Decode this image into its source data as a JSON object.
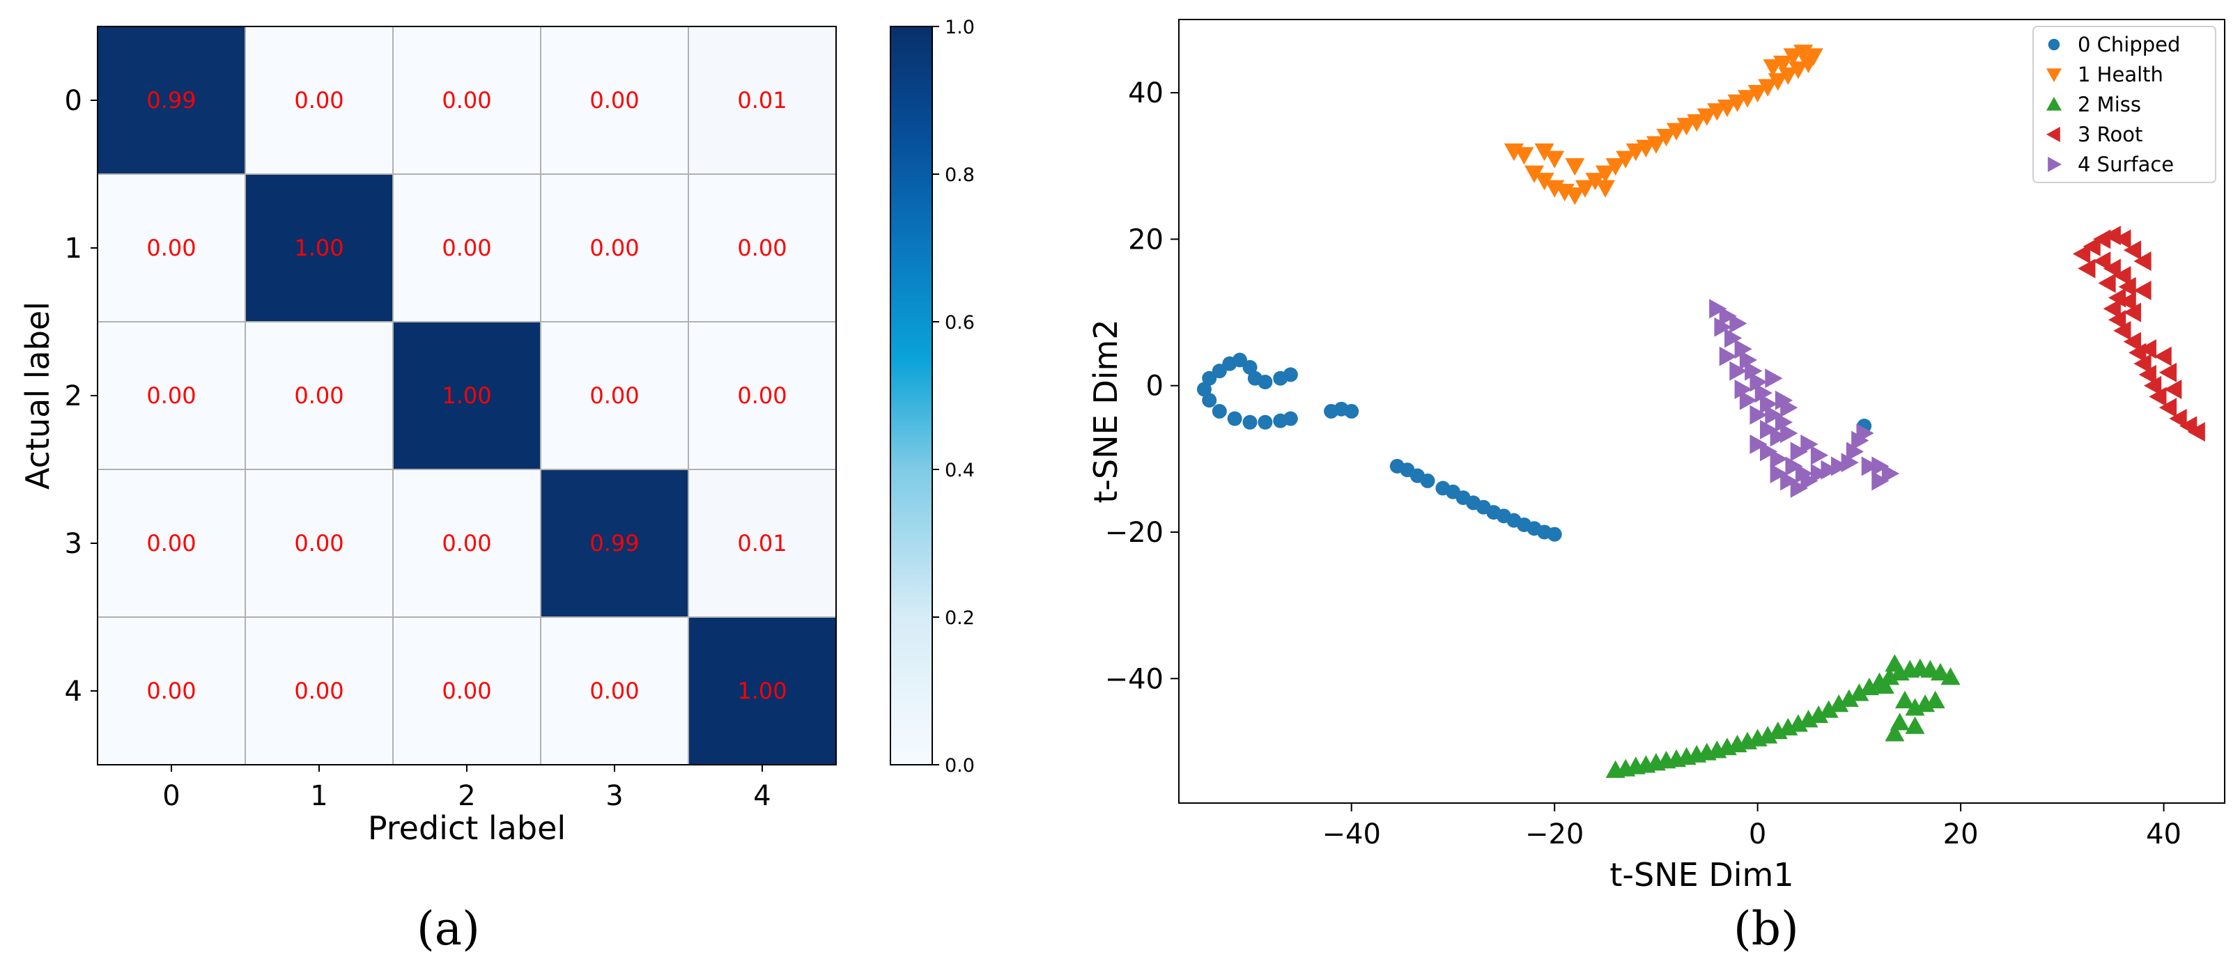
{
  "captions": [
    "(a)",
    "(b)"
  ],
  "colors": {
    "dark": "#08306b",
    "light": "#f7fbff",
    "text": "#ff0000",
    "series": [
      "#1f77b4",
      "#ff7f0e",
      "#2ca02c",
      "#d62728",
      "#9467bd"
    ]
  },
  "chart_data": [
    {
      "type": "heatmap",
      "title": "",
      "xlabel": "Predict label",
      "ylabel": "Actual label",
      "x_categories": [
        "0",
        "1",
        "2",
        "3",
        "4"
      ],
      "y_categories": [
        "0",
        "1",
        "2",
        "3",
        "4"
      ],
      "values": [
        [
          0.99,
          0.0,
          0.0,
          0.0,
          0.01
        ],
        [
          0.0,
          1.0,
          0.0,
          0.0,
          0.0
        ],
        [
          0.0,
          0.0,
          1.0,
          0.0,
          0.0
        ],
        [
          0.0,
          0.0,
          0.0,
          0.99,
          0.01
        ],
        [
          0.0,
          0.0,
          0.0,
          0.0,
          1.0
        ]
      ],
      "value_labels": [
        [
          "0.99",
          "0.00",
          "0.00",
          "0.00",
          "0.01"
        ],
        [
          "0.00",
          "1.00",
          "0.00",
          "0.00",
          "0.00"
        ],
        [
          "0.00",
          "0.00",
          "1.00",
          "0.00",
          "0.00"
        ],
        [
          "0.00",
          "0.00",
          "0.00",
          "0.99",
          "0.01"
        ],
        [
          "0.00",
          "0.00",
          "0.00",
          "0.00",
          "1.00"
        ]
      ],
      "colorbar": {
        "range": [
          0,
          1
        ],
        "ticks": [
          "0.0",
          "0.2",
          "0.4",
          "0.6",
          "0.8",
          "1.0"
        ]
      },
      "grid": true
    },
    {
      "type": "scatter",
      "title": "",
      "xlabel": "t-SNE Dim1",
      "ylabel": "t-SNE Dim2",
      "xlim": [
        -57,
        46
      ],
      "ylim": [
        -57,
        50
      ],
      "x_ticks": [
        -40,
        -20,
        0,
        20,
        40
      ],
      "y_ticks": [
        -40,
        -20,
        0,
        20,
        40
      ],
      "legend_position": "top-right",
      "series": [
        {
          "name": "0 Chipped",
          "marker": "circle",
          "color": "#1f77b4",
          "points": [
            [
              -52,
              3
            ],
            [
              -53,
              2
            ],
            [
              -54,
              1
            ],
            [
              -54.5,
              -0.5
            ],
            [
              -54,
              -2
            ],
            [
              -53,
              -3.5
            ],
            [
              -51.5,
              -4.5
            ],
            [
              -50,
              -5
            ],
            [
              -48.5,
              -5
            ],
            [
              -47,
              -4.8
            ],
            [
              -46,
              -4.5
            ],
            [
              -51,
              3.5
            ],
            [
              -50,
              2.5
            ],
            [
              -49.5,
              1
            ],
            [
              -48.5,
              0.5
            ],
            [
              -47,
              1
            ],
            [
              -46,
              1.5
            ],
            [
              -42,
              -3.5
            ],
            [
              -41,
              -3.2
            ],
            [
              -40,
              -3.5
            ],
            [
              -35.5,
              -11
            ],
            [
              -34.5,
              -11.5
            ],
            [
              -33.5,
              -12.3
            ],
            [
              -32.5,
              -13
            ],
            [
              -31,
              -14
            ],
            [
              -30,
              -14.5
            ],
            [
              -29,
              -15.3
            ],
            [
              -28,
              -16
            ],
            [
              -27,
              -16.6
            ],
            [
              -26,
              -17.3
            ],
            [
              -25,
              -17.8
            ],
            [
              -24,
              -18.4
            ],
            [
              -23,
              -19
            ],
            [
              -22,
              -19.5
            ],
            [
              -21,
              -20
            ],
            [
              -20,
              -20.3
            ],
            [
              10.5,
              -5.5
            ]
          ]
        },
        {
          "name": "1 Health",
          "marker": "triangle-down",
          "color": "#ff7f0e",
          "points": [
            [
              -24,
              32
            ],
            [
              -23,
              31.5
            ],
            [
              -21,
              32
            ],
            [
              -20,
              31
            ],
            [
              -22,
              29
            ],
            [
              -21,
              28
            ],
            [
              -20,
              27
            ],
            [
              -19,
              26.5
            ],
            [
              -18,
              26
            ],
            [
              -17,
              27
            ],
            [
              -16,
              28
            ],
            [
              -15,
              29
            ],
            [
              -14,
              30
            ],
            [
              -13,
              31
            ],
            [
              -12,
              32
            ],
            [
              -11,
              32.5
            ],
            [
              -10,
              33
            ],
            [
              -9,
              34
            ],
            [
              -8,
              34.8
            ],
            [
              -7,
              35.5
            ],
            [
              -6,
              36
            ],
            [
              -5,
              36.8
            ],
            [
              -4,
              37.5
            ],
            [
              -3,
              38
            ],
            [
              -2,
              38.7
            ],
            [
              -1,
              39.3
            ],
            [
              0,
              40
            ],
            [
              1,
              40.8
            ],
            [
              2,
              41.6
            ],
            [
              3,
              42.4
            ],
            [
              4,
              43.2
            ],
            [
              5,
              44
            ],
            [
              5.5,
              45
            ],
            [
              4.5,
              45.5
            ],
            [
              3.5,
              45
            ],
            [
              2.5,
              44
            ],
            [
              1.5,
              43.5
            ],
            [
              -15,
              27
            ],
            [
              -18,
              30
            ]
          ]
        },
        {
          "name": "2 Miss",
          "marker": "triangle-up",
          "color": "#2ca02c",
          "points": [
            [
              -14,
              -52.5
            ],
            [
              -13,
              -52.3
            ],
            [
              -12,
              -52
            ],
            [
              -11,
              -51.8
            ],
            [
              -10,
              -51.5
            ],
            [
              -9,
              -51.2
            ],
            [
              -8,
              -51
            ],
            [
              -7,
              -50.7
            ],
            [
              -6,
              -50.4
            ],
            [
              -5,
              -50.1
            ],
            [
              -4,
              -49.8
            ],
            [
              -3,
              -49.4
            ],
            [
              -2,
              -49
            ],
            [
              -1,
              -48.6
            ],
            [
              0,
              -48.2
            ],
            [
              1,
              -47.8
            ],
            [
              2,
              -47.2
            ],
            [
              3,
              -46.7
            ],
            [
              4,
              -46.2
            ],
            [
              5,
              -45.6
            ],
            [
              6,
              -45
            ],
            [
              7,
              -44.3
            ],
            [
              8,
              -43.5
            ],
            [
              9,
              -42.8
            ],
            [
              10,
              -42
            ],
            [
              11,
              -41.2
            ],
            [
              12,
              -40.5
            ],
            [
              13,
              -39.8
            ],
            [
              14,
              -39.2
            ],
            [
              15,
              -38.8
            ],
            [
              16,
              -38.6
            ],
            [
              17,
              -38.8
            ],
            [
              18,
              -39.2
            ],
            [
              19,
              -39.8
            ],
            [
              13.5,
              -38
            ],
            [
              12.5,
              -41
            ],
            [
              14.5,
              -43
            ],
            [
              15.5,
              -44
            ],
            [
              16.5,
              -43.5
            ],
            [
              17.5,
              -43
            ],
            [
              14,
              -46
            ],
            [
              15.5,
              -46.5
            ],
            [
              13.5,
              -47.5
            ]
          ]
        },
        {
          "name": "3 Root",
          "marker": "triangle-left",
          "color": "#d62728",
          "points": [
            [
              32,
              18
            ],
            [
              33,
              19
            ],
            [
              34,
              20
            ],
            [
              35,
              20.5
            ],
            [
              36,
              20
            ],
            [
              37,
              18.5
            ],
            [
              38,
              17
            ],
            [
              32.5,
              16
            ],
            [
              34,
              17
            ],
            [
              35,
              16
            ],
            [
              36,
              15
            ],
            [
              36.5,
              13.5
            ],
            [
              35.5,
              12
            ],
            [
              35,
              10.5
            ],
            [
              35.5,
              9
            ],
            [
              36,
              7.5
            ],
            [
              37,
              6
            ],
            [
              37.5,
              4.5
            ],
            [
              38,
              3
            ],
            [
              38.5,
              1.5
            ],
            [
              39,
              0
            ],
            [
              39.5,
              -1.5
            ],
            [
              40.5,
              -3
            ],
            [
              41.5,
              -4.5
            ],
            [
              42.5,
              -5.5
            ],
            [
              43.3,
              -6.3
            ],
            [
              38,
              13
            ],
            [
              37,
              10
            ],
            [
              34.5,
              14
            ],
            [
              36.5,
              11.5
            ],
            [
              38.5,
              5
            ],
            [
              40,
              4
            ],
            [
              40.5,
              1.8
            ],
            [
              41,
              -0.5
            ]
          ]
        },
        {
          "name": "4 Surface",
          "marker": "triangle-right",
          "color": "#9467bd",
          "points": [
            [
              -4,
              10.5
            ],
            [
              -3,
              9.5
            ],
            [
              -2,
              8.5
            ],
            [
              -3.5,
              8
            ],
            [
              -2.5,
              6.5
            ],
            [
              -1.5,
              5
            ],
            [
              -1,
              3.5
            ],
            [
              -0.5,
              2
            ],
            [
              0,
              0.5
            ],
            [
              0.5,
              -1
            ],
            [
              1,
              -2.5
            ],
            [
              1.5,
              -4
            ],
            [
              2.5,
              -5
            ],
            [
              3,
              -6.5
            ],
            [
              2,
              -7
            ],
            [
              1,
              -6
            ],
            [
              0,
              -8
            ],
            [
              1,
              -9
            ],
            [
              2,
              -10
            ],
            [
              3.5,
              -11
            ],
            [
              4.5,
              -12
            ],
            [
              5,
              -13
            ],
            [
              4,
              -14
            ],
            [
              3,
              -13
            ],
            [
              2,
              -12
            ],
            [
              6,
              -12
            ],
            [
              7,
              -11.5
            ],
            [
              8,
              -11
            ],
            [
              9,
              -10.5
            ],
            [
              9.5,
              -9
            ],
            [
              10,
              -7.5
            ],
            [
              10.5,
              -6.5
            ],
            [
              11,
              -11
            ],
            [
              12,
              -11
            ],
            [
              13,
              -12
            ],
            [
              12,
              -13
            ],
            [
              -1,
              -2
            ],
            [
              0,
              -4
            ],
            [
              -1.5,
              -0.5
            ],
            [
              2.5,
              -2
            ],
            [
              4,
              -9
            ],
            [
              5,
              -8
            ],
            [
              6,
              -9.5
            ],
            [
              3,
              -3
            ],
            [
              -2,
              2
            ],
            [
              -3,
              4
            ],
            [
              1.5,
              1
            ]
          ]
        }
      ]
    }
  ]
}
